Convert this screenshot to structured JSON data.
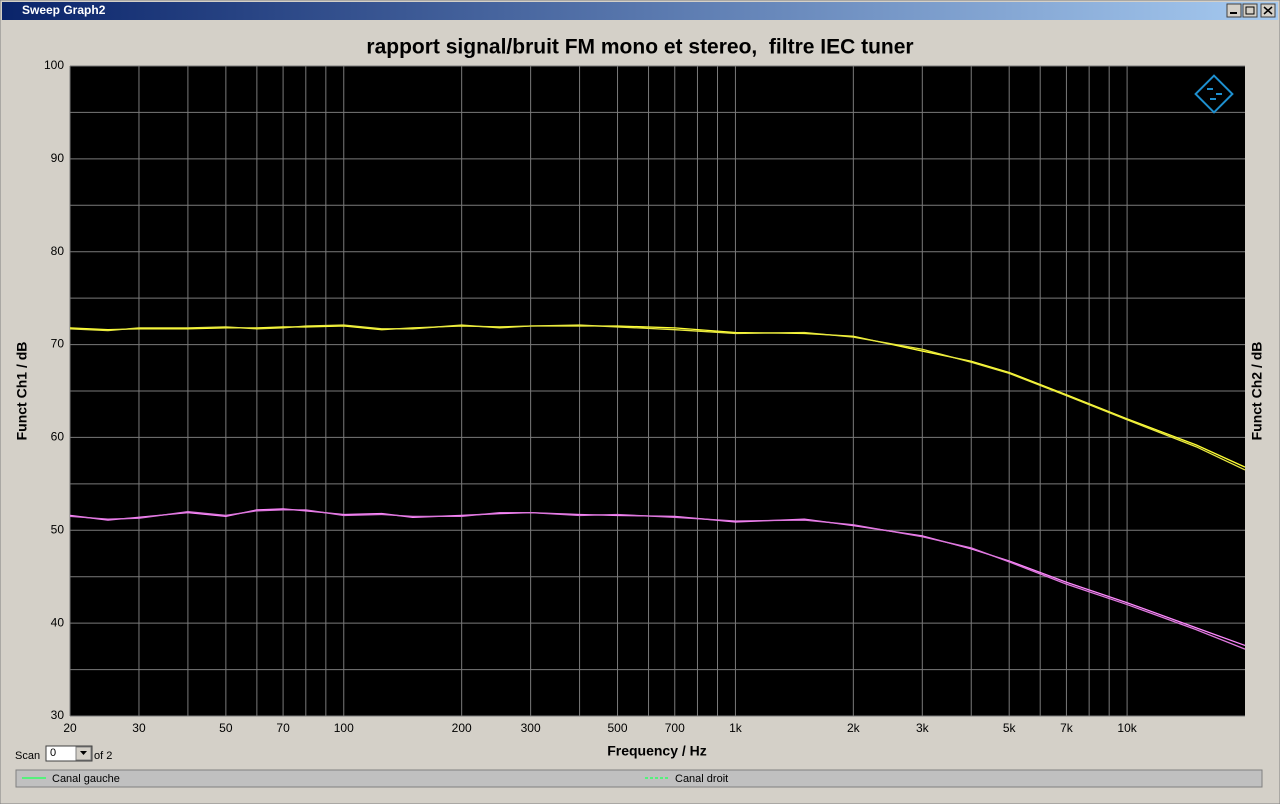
{
  "window": {
    "title": "Sweep Graph2"
  },
  "scan": {
    "label": "Scan",
    "value": "0",
    "of": "of 2"
  },
  "chart_data": {
    "type": "line",
    "title": "rapport signal/bruit FM mono et stereo,  filtre IEC tuner",
    "x_label": "Frequency / Hz",
    "y_label": "Funct Ch1 / dB",
    "y2_label": "Funct Ch2 / dB",
    "x_scale": "log",
    "grid": true,
    "xlim": [
      20,
      20000
    ],
    "ylim": [
      30,
      100
    ],
    "xticks": [
      20,
      30,
      50,
      70,
      100,
      200,
      300,
      500,
      700,
      {
        "value": 1000,
        "label": "1k"
      },
      {
        "value": 2000,
        "label": "2k"
      },
      {
        "value": 3000,
        "label": "3k"
      },
      {
        "value": 5000,
        "label": "5k"
      },
      {
        "value": 7000,
        "label": "7k"
      },
      {
        "value": 10000,
        "label": "10k"
      }
    ],
    "x_minor_ticks": [
      40,
      60,
      80,
      90,
      400,
      600,
      800,
      900,
      4000,
      6000,
      8000,
      9000
    ],
    "yticks": [
      30,
      40,
      50,
      60,
      70,
      80,
      90,
      100
    ],
    "y_minor_ticks": [
      35,
      45,
      55,
      65,
      75,
      85,
      95
    ],
    "legend": [
      {
        "name": "Canal gauche",
        "color": "#33ff66",
        "dash": false
      },
      {
        "name": "Canal droit",
        "color": "#33ff66",
        "dash": true
      }
    ],
    "x": [
      20,
      25,
      30,
      40,
      50,
      60,
      70,
      80,
      100,
      125,
      150,
      200,
      250,
      300,
      400,
      500,
      700,
      1000,
      1500,
      2000,
      3000,
      4000,
      5000,
      7000,
      10000,
      15000,
      20000
    ],
    "series": [
      {
        "color": "#ffff33",
        "values": [
          71.8,
          71.6,
          71.7,
          71.7,
          71.8,
          71.8,
          71.9,
          71.9,
          72.0,
          71.6,
          71.8,
          72.0,
          71.9,
          72.0,
          72.0,
          72.0,
          71.8,
          71.3,
          71.2,
          70.9,
          69.3,
          68.2,
          67.0,
          64.6,
          62.0,
          59.2,
          56.8
        ]
      },
      {
        "color": "#e8e840",
        "values": [
          71.7,
          71.5,
          71.8,
          71.8,
          71.9,
          71.7,
          71.8,
          72.0,
          72.1,
          71.7,
          71.7,
          72.1,
          71.8,
          72.0,
          72.1,
          71.9,
          71.6,
          71.2,
          71.3,
          70.8,
          69.5,
          68.1,
          66.9,
          64.5,
          61.9,
          59.0,
          56.5
        ]
      },
      {
        "color": "#ff88ff",
        "values": [
          51.6,
          51.1,
          51.4,
          51.9,
          51.5,
          52.2,
          52.3,
          52.1,
          51.7,
          51.8,
          51.4,
          51.6,
          51.8,
          51.9,
          51.7,
          51.6,
          51.5,
          50.9,
          51.2,
          50.5,
          49.4,
          48.0,
          46.7,
          44.4,
          42.2,
          39.5,
          37.6
        ]
      },
      {
        "color": "#dd77dd",
        "values": [
          51.5,
          51.2,
          51.3,
          52.0,
          51.6,
          52.1,
          52.2,
          52.2,
          51.6,
          51.7,
          51.5,
          51.5,
          51.9,
          51.9,
          51.6,
          51.7,
          51.4,
          51.0,
          51.1,
          50.6,
          49.3,
          48.1,
          46.6,
          44.2,
          42.0,
          39.3,
          37.2
        ]
      }
    ]
  }
}
